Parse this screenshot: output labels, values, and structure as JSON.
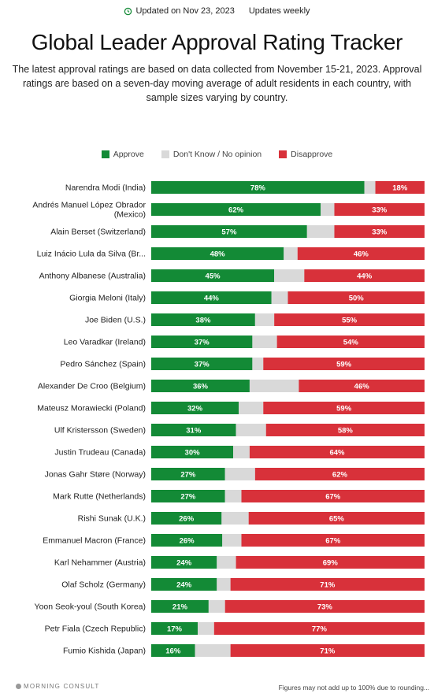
{
  "header": {
    "updated_label": "Updated on Nov 23, 2023",
    "frequency_label": "Updates weekly"
  },
  "colors": {
    "approve": "#138a36",
    "dont_know": "#d9d9d9",
    "disapprove": "#d8313a"
  },
  "chart_data": {
    "type": "bar",
    "orientation": "horizontal-stacked-100",
    "title": "Global Leader Approval Rating Tracker",
    "subtitle": "The latest approval ratings are based on data collected from November 15-21, 2023. Approval ratings are based on a seven-day moving average of adult residents in each country, with sample sizes varying by country.",
    "legend": [
      "Approve",
      "Don't Know / No opinion",
      "Disapprove"
    ],
    "legend_position": "top",
    "categories": [
      "Narendra Modi (India)",
      "Andrés Manuel López Obrador (Mexico)",
      "Alain Berset (Switzerland)",
      "Luiz Inácio Lula da Silva (Br...",
      "Anthony Albanese (Australia)",
      "Giorgia Meloni (Italy)",
      "Joe Biden (U.S.)",
      "Leo Varadkar (Ireland)",
      "Pedro Sánchez (Spain)",
      "Alexander De Croo (Belgium)",
      "Mateusz Morawiecki (Poland)",
      "Ulf Kristersson (Sweden)",
      "Justin Trudeau (Canada)",
      "Jonas Gahr Støre (Norway)",
      "Mark Rutte (Netherlands)",
      "Rishi Sunak (U.K.)",
      "Emmanuel Macron (France)",
      "Karl Nehammer (Austria)",
      "Olaf Scholz (Germany)",
      "Yoon Seok-youl (South Korea)",
      "Petr Fiala (Czech Republic)",
      "Fumio Kishida (Japan)"
    ],
    "series": [
      {
        "name": "Approve",
        "values": [
          78,
          62,
          57,
          48,
          45,
          44,
          38,
          37,
          37,
          36,
          32,
          31,
          30,
          27,
          27,
          26,
          26,
          24,
          24,
          21,
          17,
          16
        ]
      },
      {
        "name": "Don't Know / No opinion",
        "values": [
          4,
          5,
          10,
          5,
          11,
          6,
          7,
          9,
          4,
          18,
          9,
          11,
          6,
          11,
          6,
          10,
          7,
          7,
          5,
          6,
          6,
          13
        ]
      },
      {
        "name": "Disapprove",
        "values": [
          18,
          33,
          33,
          46,
          44,
          50,
          55,
          54,
          59,
          46,
          59,
          58,
          64,
          62,
          67,
          65,
          67,
          69,
          71,
          73,
          77,
          71
        ]
      }
    ],
    "value_format": "{v}%",
    "xlim": [
      0,
      100
    ]
  },
  "footer": {
    "logo_text": "MORNING CONSULT",
    "note": "Figures may not add up to 100% due to rounding..."
  }
}
